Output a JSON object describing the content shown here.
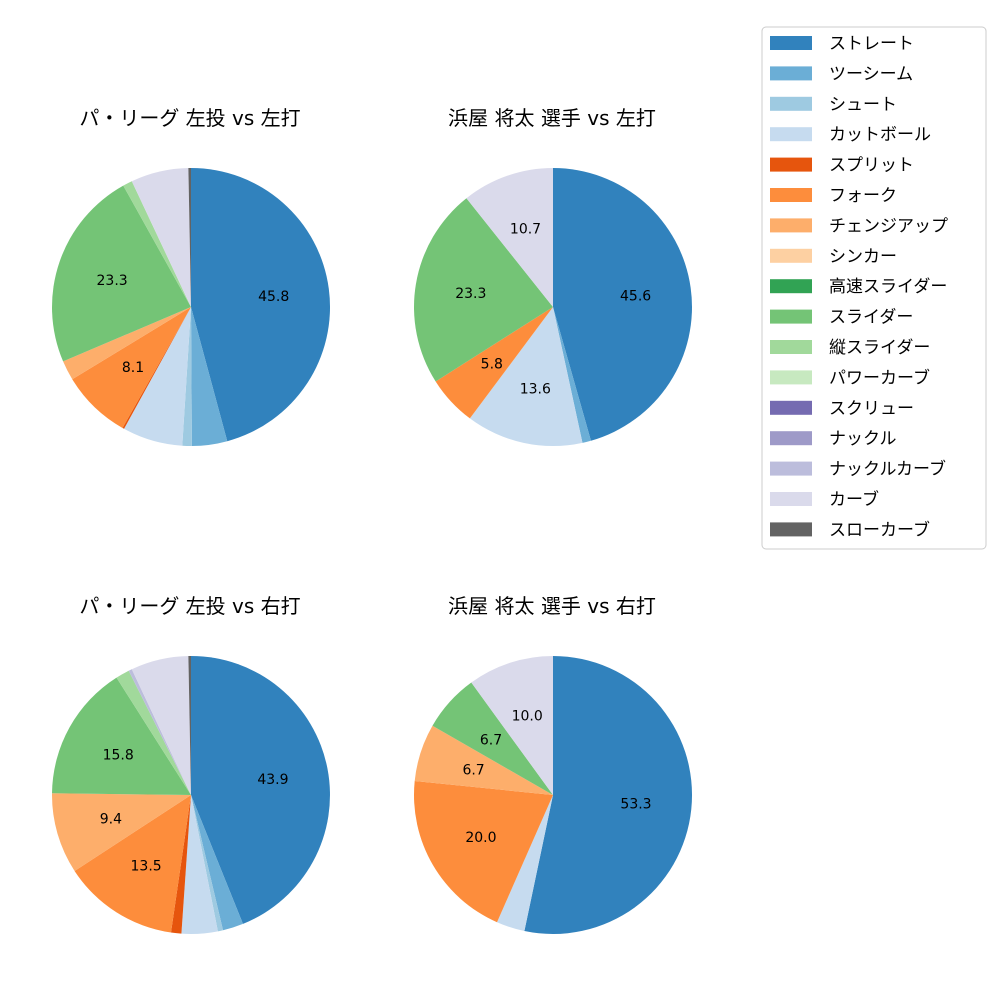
{
  "colors": {
    "ストレート": "#3182bd",
    "ツーシーム": "#6baed6",
    "シュート": "#9ecae1",
    "カットボール": "#c6dbef",
    "スプリット": "#e6550d",
    "フォーク": "#fd8d3c",
    "チェンジアップ": "#fdae6b",
    "シンカー": "#fdd0a2",
    "高速スライダー": "#31a354",
    "スライダー": "#74c476",
    "縦スライダー": "#a1d99b",
    "パワーカーブ": "#c7e9c0",
    "スクリュー": "#756bb1",
    "ナックル": "#9e9ac8",
    "ナックルカーブ": "#bcbddc",
    "カーブ": "#dadaeb",
    "スローカーブ": "#636363"
  },
  "legend": {
    "placement": "upper-right",
    "entries": [
      "ストレート",
      "ツーシーム",
      "シュート",
      "カットボール",
      "スプリット",
      "フォーク",
      "チェンジアップ",
      "シンカー",
      "高速スライダー",
      "スライダー",
      "縦スライダー",
      "パワーカーブ",
      "スクリュー",
      "ナックル",
      "ナックルカーブ",
      "カーブ",
      "スローカーブ"
    ]
  },
  "chart_data": [
    {
      "type": "pie",
      "title": "パ・リーグ 左投 vs 左打",
      "slices": [
        {
          "name": "ストレート",
          "value": 45.8,
          "label": "45.8"
        },
        {
          "name": "ツーシーム",
          "value": 4.1,
          "label": ""
        },
        {
          "name": "シュート",
          "value": 1.1,
          "label": ""
        },
        {
          "name": "カットボール",
          "value": 7.0,
          "label": ""
        },
        {
          "name": "スプリット",
          "value": 0.2,
          "label": ""
        },
        {
          "name": "フォーク",
          "value": 8.1,
          "label": "8.1"
        },
        {
          "name": "チェンジアップ",
          "value": 2.3,
          "label": ""
        },
        {
          "name": "スライダー",
          "value": 23.3,
          "label": "23.3"
        },
        {
          "name": "縦スライダー",
          "value": 1.1,
          "label": ""
        },
        {
          "name": "カーブ",
          "value": 6.7,
          "label": ""
        },
        {
          "name": "スローカーブ",
          "value": 0.3,
          "label": ""
        }
      ]
    },
    {
      "type": "pie",
      "title": "浜屋 将太 選手 vs 左打",
      "slices": [
        {
          "name": "ストレート",
          "value": 45.6,
          "label": "45.6"
        },
        {
          "name": "ツーシーム",
          "value": 1.0,
          "label": ""
        },
        {
          "name": "カットボール",
          "value": 13.6,
          "label": "13.6"
        },
        {
          "name": "フォーク",
          "value": 5.8,
          "label": "5.8"
        },
        {
          "name": "スライダー",
          "value": 23.3,
          "label": "23.3"
        },
        {
          "name": "カーブ",
          "value": 10.7,
          "label": "10.7"
        }
      ]
    },
    {
      "type": "pie",
      "title": "パ・リーグ 左投 vs 右打",
      "slices": [
        {
          "name": "ストレート",
          "value": 43.9,
          "label": "43.9"
        },
        {
          "name": "ツーシーム",
          "value": 2.4,
          "label": ""
        },
        {
          "name": "シュート",
          "value": 0.6,
          "label": ""
        },
        {
          "name": "カットボール",
          "value": 4.2,
          "label": ""
        },
        {
          "name": "スプリット",
          "value": 1.2,
          "label": ""
        },
        {
          "name": "フォーク",
          "value": 13.5,
          "label": "13.5"
        },
        {
          "name": "チェンジアップ",
          "value": 9.4,
          "label": "9.4"
        },
        {
          "name": "スライダー",
          "value": 15.8,
          "label": "15.8"
        },
        {
          "name": "縦スライダー",
          "value": 1.6,
          "label": ""
        },
        {
          "name": "ナックルカーブ",
          "value": 0.4,
          "label": ""
        },
        {
          "name": "カーブ",
          "value": 6.7,
          "label": ""
        },
        {
          "name": "スローカーブ",
          "value": 0.3,
          "label": ""
        }
      ]
    },
    {
      "type": "pie",
      "title": "浜屋 将太 選手 vs 右打",
      "slices": [
        {
          "name": "ストレート",
          "value": 53.3,
          "label": "53.3"
        },
        {
          "name": "カットボール",
          "value": 3.3,
          "label": ""
        },
        {
          "name": "フォーク",
          "value": 20.0,
          "label": "20.0"
        },
        {
          "name": "チェンジアップ",
          "value": 6.7,
          "label": "6.7"
        },
        {
          "name": "スライダー",
          "value": 6.7,
          "label": "6.7"
        },
        {
          "name": "カーブ",
          "value": 10.0,
          "label": "10.0"
        }
      ]
    }
  ]
}
